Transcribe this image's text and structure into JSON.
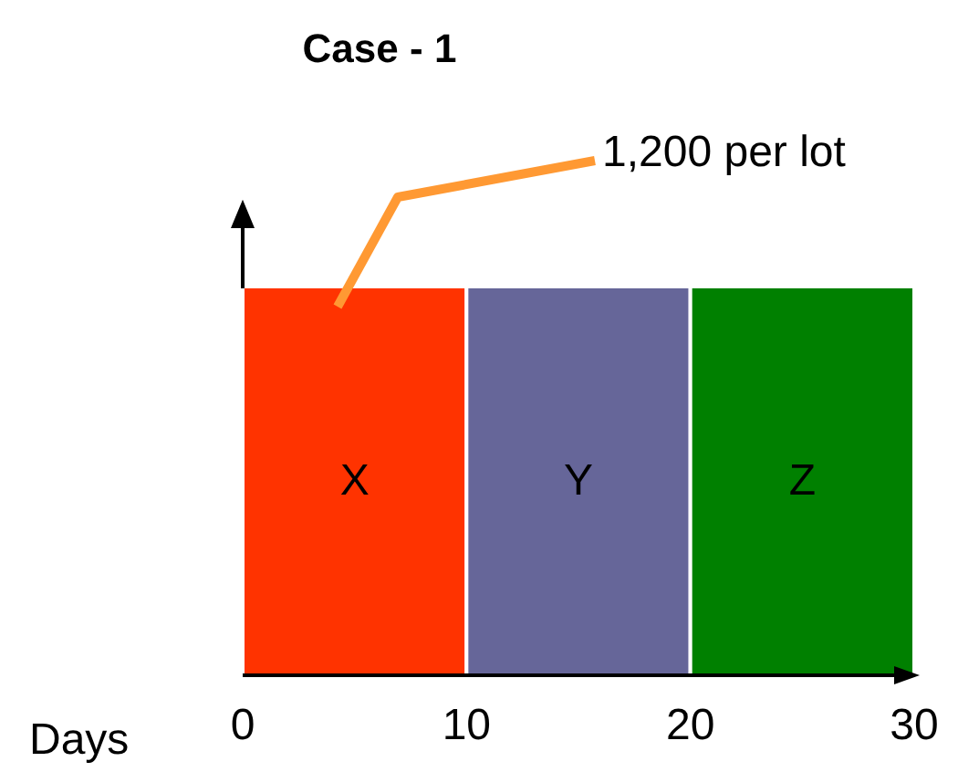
{
  "chart_data": {
    "type": "bar",
    "orientation": "horizontal",
    "stacked": true,
    "title": "Case - 1",
    "xlabel": "Days",
    "categories": [
      null
    ],
    "series": [
      {
        "name": "X",
        "color": "#ff3300",
        "values": [
          10
        ]
      },
      {
        "name": "Y",
        "color": "#666699",
        "values": [
          10
        ]
      },
      {
        "name": "Z",
        "color": "#008000",
        "values": [
          10
        ]
      }
    ],
    "xlim": [
      0,
      30
    ],
    "xticks": [
      0,
      10,
      20,
      30
    ],
    "annotations": [
      "1,200 per lot"
    ]
  }
}
